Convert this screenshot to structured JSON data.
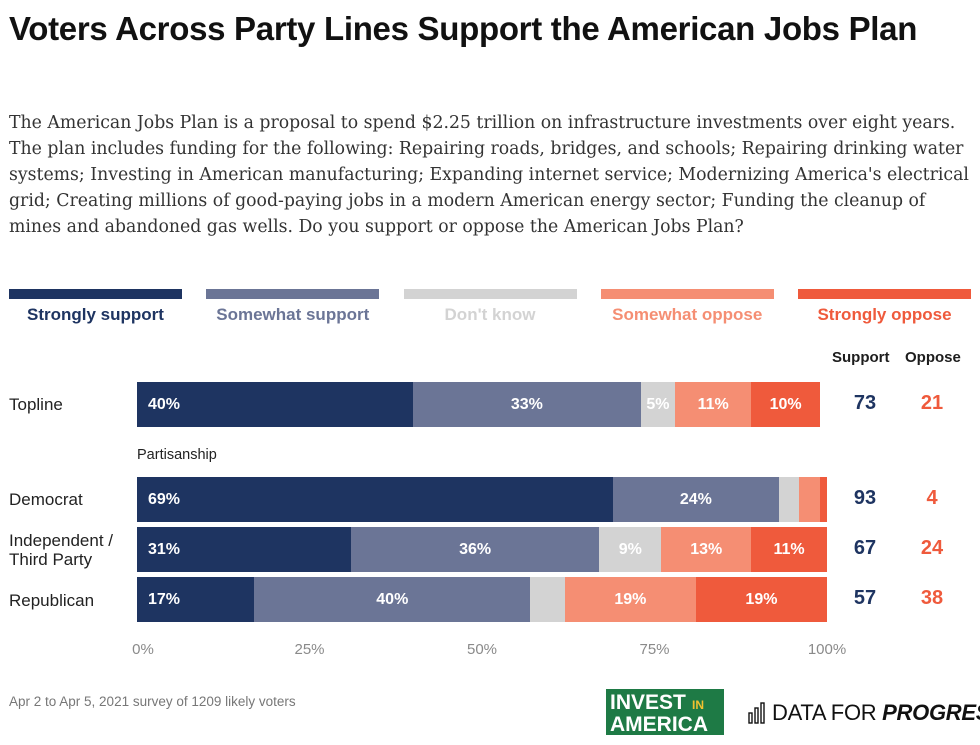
{
  "title": "Voters Across Party Lines Support the American Jobs Plan",
  "subtitle": "The American Jobs Plan is a proposal to spend $2.25 trillion on infrastructure investments over eight years. The plan includes funding for the following: Repairing roads, bridges, and schools; Repairing drinking water systems; Investing in American manufacturing; Expanding internet service; Modernizing America's electrical grid; Creating millions of good-paying jobs in a modern American energy sector; Funding the cleanup of mines and abandoned gas wells. Do you support or oppose the American Jobs Plan?",
  "footnote": "Apr 2 to Apr 5, 2021 survey of 1209 likely voters",
  "logos": {
    "invest_line1": "INVEST",
    "invest_in": "IN",
    "invest_line2": "AMERICA",
    "dfp_plain": "DATA FOR ",
    "dfp_bold": "PROGRESS",
    "dfp_icon": "bar-chart-icon"
  },
  "colors": {
    "strongly_support": "#1e3461",
    "somewhat_support": "#6b7596",
    "dont_know": "#d3d3d3",
    "somewhat_oppose": "#f58e73",
    "strongly_oppose": "#ef5a3c",
    "support_total": "#1e3461",
    "oppose_total": "#ef5a3c"
  },
  "chart_data": {
    "type": "bar",
    "orientation": "horizontal",
    "stacked": true,
    "legend_placement": "top",
    "xlim": [
      0,
      100
    ],
    "x_ticks": [
      "0%",
      "25%",
      "50%",
      "75%",
      "100%"
    ],
    "legend": [
      "Strongly support",
      "Somewhat support",
      "Don't know",
      "Somewhat oppose",
      "Strongly oppose"
    ],
    "group_label": "Partisanship",
    "totals_headers": {
      "support": "Support",
      "oppose": "Oppose"
    },
    "categories": [
      "Topline",
      "Democrat",
      "Independent / Third Party",
      "Republican"
    ],
    "series": [
      {
        "name": "Strongly support",
        "values": [
          40,
          69,
          31,
          17
        ],
        "labels": [
          "40%",
          "69%",
          "31%",
          "17%"
        ]
      },
      {
        "name": "Somewhat support",
        "values": [
          33,
          24,
          36,
          40
        ],
        "labels": [
          "33%",
          "24%",
          "36%",
          "40%"
        ]
      },
      {
        "name": "Don't know",
        "values": [
          5,
          3,
          9,
          5
        ],
        "labels": [
          "5%",
          "",
          "9%",
          ""
        ]
      },
      {
        "name": "Somewhat oppose",
        "values": [
          11,
          3,
          13,
          19
        ],
        "labels": [
          "11%",
          "",
          "13%",
          "19%"
        ]
      },
      {
        "name": "Strongly oppose",
        "values": [
          10,
          1,
          11,
          19
        ],
        "labels": [
          "10%",
          "",
          "11%",
          "19%"
        ]
      }
    ],
    "totals": [
      {
        "support": 73,
        "oppose": 21
      },
      {
        "support": 93,
        "oppose": 4
      },
      {
        "support": 67,
        "oppose": 24
      },
      {
        "support": 57,
        "oppose": 38
      }
    ]
  }
}
